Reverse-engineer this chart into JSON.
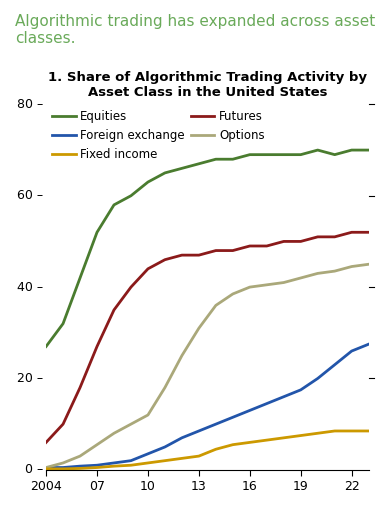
{
  "title": "1. Share of Algorithmic Trading Activity by\nAsset Class in the United States",
  "supertitle": "Algorithmic trading has expanded across asset\nclasses.",
  "supertitle_color": "#6aaa5a",
  "background_color": "#ffffff",
  "years": [
    2004,
    2005,
    2006,
    2007,
    2008,
    2009,
    2010,
    2011,
    2012,
    2013,
    2014,
    2015,
    2016,
    2017,
    2018,
    2019,
    2020,
    2021,
    2022,
    2023
  ],
  "equities": [
    27,
    32,
    42,
    52,
    58,
    60,
    63,
    65,
    66,
    67,
    68,
    68,
    69,
    69,
    69,
    69,
    70,
    69,
    70,
    70
  ],
  "futures": [
    6,
    10,
    18,
    27,
    35,
    40,
    44,
    46,
    47,
    47,
    48,
    48,
    49,
    49,
    50,
    50,
    51,
    51,
    52,
    52
  ],
  "foreign_exchange": [
    0.5,
    0.5,
    0.8,
    1.0,
    1.5,
    2.0,
    3.5,
    5.0,
    7.0,
    8.5,
    10.0,
    11.5,
    13.0,
    14.5,
    16.0,
    17.5,
    20.0,
    23.0,
    26.0,
    27.5
  ],
  "options": [
    0.5,
    1.5,
    3.0,
    5.5,
    8.0,
    10.0,
    12.0,
    18.0,
    25.0,
    31.0,
    36.0,
    38.5,
    40.0,
    40.5,
    41.0,
    42.0,
    43.0,
    43.5,
    44.5,
    45.0
  ],
  "fixed_income": [
    0.2,
    0.2,
    0.3,
    0.5,
    0.8,
    1.0,
    1.5,
    2.0,
    2.5,
    3.0,
    4.5,
    5.5,
    6.0,
    6.5,
    7.0,
    7.5,
    8.0,
    8.5,
    8.5,
    8.5
  ],
  "equities_color": "#4a7c2f",
  "futures_color": "#8b1a1a",
  "foreign_exchange_color": "#2255aa",
  "options_color": "#aaa87a",
  "fixed_income_color": "#cc9900",
  "ylim": [
    0,
    80
  ],
  "yticks": [
    0,
    20,
    40,
    60,
    80
  ],
  "xticks": [
    2004,
    2007,
    2010,
    2013,
    2016,
    2019,
    2022
  ],
  "xticklabels": [
    "2004",
    "07",
    "10",
    "13",
    "16",
    "19",
    "22"
  ],
  "linewidth": 2.0
}
